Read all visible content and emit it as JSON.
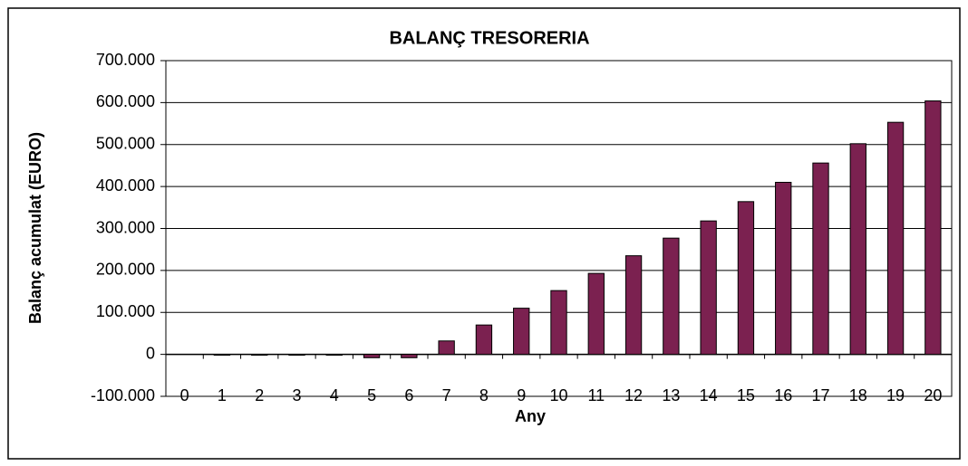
{
  "chart_data": {
    "type": "bar",
    "title": "BALANÇ TRESORERIA",
    "x_label": "Any",
    "y_label": "Balanç acumulat (EURO)",
    "categories": [
      "0",
      "1",
      "2",
      "3",
      "4",
      "5",
      "6",
      "7",
      "8",
      "9",
      "10",
      "11",
      "12",
      "13",
      "14",
      "15",
      "16",
      "17",
      "18",
      "19",
      "20"
    ],
    "values": [
      0,
      -2000,
      -2000,
      -2000,
      -2000,
      -8000,
      -8000,
      32000,
      70000,
      110000,
      152000,
      193000,
      235000,
      277000,
      318000,
      364000,
      410000,
      456000,
      502000,
      553000,
      604000
    ],
    "color": "#7b2150",
    "ylim": [
      -100000,
      700000
    ],
    "yticks": [
      {
        "value": -100000,
        "label": "-100.000"
      },
      0,
      {
        "value": 100000,
        "label": "100.000"
      },
      {
        "value": 200000,
        "label": "200.000"
      },
      {
        "value": 300000,
        "label": "300.000"
      },
      {
        "value": 400000,
        "label": "400.000"
      },
      {
        "value": 500000,
        "label": "500.000"
      },
      {
        "value": 600000,
        "label": "600.000"
      },
      {
        "value": 700000,
        "label": "700.000"
      }
    ],
    "grid": true
  }
}
